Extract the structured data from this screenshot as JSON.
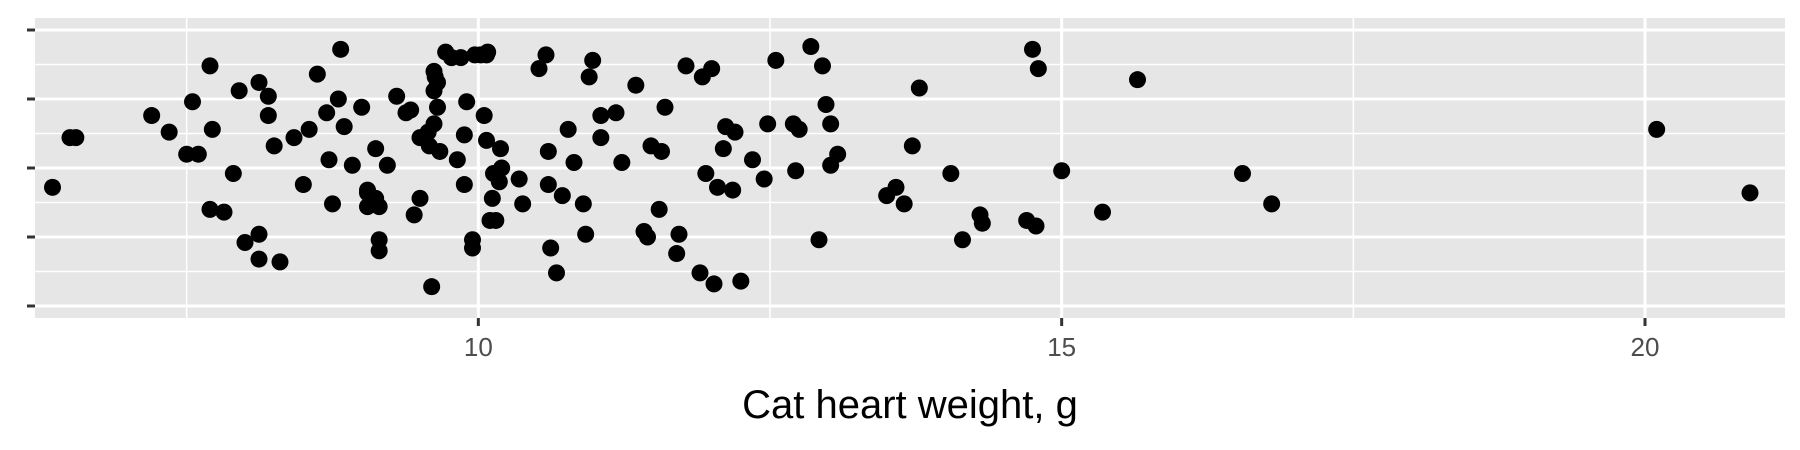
{
  "chart_data": {
    "type": "scatter",
    "title": "",
    "xlabel": "Cat heart weight, g",
    "ylabel": "",
    "xlim": [
      6.2,
      21.2
    ],
    "x_ticks": [
      10,
      15,
      20
    ],
    "x_tick_labels": [
      "10",
      "15",
      "20"
    ],
    "x_minor_ticks": [
      7.5,
      12.5,
      17.5
    ],
    "y_tick_marks": 5,
    "y_tick_labels_shown": false,
    "y_jitter": true,
    "grid": true,
    "legend": "none",
    "colors": {
      "panel_background": "#e6e6e6",
      "grid": "#ffffff",
      "points": "#000000",
      "tick_label": "#4d4d4d",
      "axis_title": "#000000"
    },
    "x": [
      6.35,
      6.5,
      6.55,
      7.2,
      7.35,
      7.5,
      7.55,
      7.6,
      7.7,
      7.7,
      7.72,
      7.82,
      7.9,
      7.95,
      8.0,
      8.12,
      8.12,
      8.12,
      8.2,
      8.2,
      8.25,
      8.3,
      8.42,
      8.5,
      8.55,
      8.62,
      8.7,
      8.72,
      8.75,
      8.8,
      8.82,
      8.85,
      8.92,
      9.0,
      9.05,
      9.05,
      9.05,
      9.12,
      9.12,
      9.15,
      9.15,
      9.15,
      9.22,
      9.3,
      9.38,
      9.42,
      9.45,
      9.5,
      9.5,
      9.57,
      9.58,
      9.6,
      9.62,
      9.62,
      9.62,
      9.63,
      9.65,
      9.65,
      9.67,
      9.72,
      9.77,
      9.82,
      9.85,
      9.88,
      9.88,
      9.9,
      9.95,
      9.95,
      9.97,
      10.02,
      10.05,
      10.07,
      10.07,
      10.08,
      10.1,
      10.12,
      10.13,
      10.15,
      10.18,
      10.19,
      10.2,
      10.35,
      10.38,
      10.52,
      10.58,
      10.6,
      10.6,
      10.62,
      10.67,
      10.72,
      10.77,
      10.82,
      10.9,
      10.92,
      10.95,
      10.98,
      11.05,
      11.05,
      11.18,
      11.23,
      11.35,
      11.42,
      11.45,
      11.48,
      11.55,
      11.57,
      11.6,
      11.7,
      11.72,
      11.78,
      11.9,
      11.92,
      11.95,
      12.0,
      12.02,
      12.05,
      12.1,
      12.12,
      12.18,
      12.2,
      12.25,
      12.35,
      12.45,
      12.48,
      12.55,
      12.7,
      12.72,
      12.75,
      12.85,
      12.92,
      12.95,
      12.98,
      13.02,
      13.02,
      13.08,
      13.5,
      13.58,
      13.65,
      13.72,
      13.78,
      14.05,
      14.15,
      14.3,
      14.32,
      14.7,
      14.75,
      14.78,
      14.8,
      15.0,
      15.35,
      15.65,
      16.55,
      16.8,
      20.1,
      20.9
    ],
    "y": [
      0.43,
      0.61,
      0.61,
      0.69,
      0.63,
      0.55,
      0.74,
      0.55,
      0.87,
      0.35,
      0.64,
      0.34,
      0.48,
      0.78,
      0.23,
      0.26,
      0.81,
      0.17,
      0.76,
      0.69,
      0.58,
      0.16,
      0.61,
      0.44,
      0.64,
      0.84,
      0.7,
      0.53,
      0.37,
      0.75,
      0.93,
      0.65,
      0.51,
      0.72,
      0.42,
      0.41,
      0.36,
      0.57,
      0.39,
      0.24,
      0.2,
      0.36,
      0.51,
      0.76,
      0.7,
      0.71,
      0.33,
      0.61,
      0.39,
      0.63,
      0.58,
      0.07,
      0.78,
      0.66,
      0.85,
      0.83,
      0.72,
      0.81,
      0.56,
      0.92,
      0.9,
      0.53,
      0.9,
      0.62,
      0.44,
      0.74,
      0.24,
      0.21,
      0.91,
      0.91,
      0.69,
      0.91,
      0.6,
      0.92,
      0.31,
      0.39,
      0.48,
      0.31,
      0.45,
      0.57,
      0.5,
      0.46,
      0.37,
      0.86,
      0.91,
      0.44,
      0.56,
      0.21,
      0.12,
      0.4,
      0.64,
      0.52,
      0.37,
      0.26,
      0.83,
      0.89,
      0.69,
      0.61,
      0.7,
      0.52,
      0.8,
      0.27,
      0.25,
      0.58,
      0.35,
      0.56,
      0.72,
      0.19,
      0.26,
      0.87,
      0.12,
      0.83,
      0.48,
      0.86,
      0.08,
      0.43,
      0.57,
      0.65,
      0.42,
      0.63,
      0.09,
      0.53,
      0.46,
      0.66,
      0.89,
      0.66,
      0.49,
      0.64,
      0.94,
      0.24,
      0.87,
      0.73,
      0.51,
      0.66,
      0.55,
      0.4,
      0.43,
      0.37,
      0.58,
      0.79,
      0.48,
      0.24,
      0.33,
      0.3,
      0.31,
      0.93,
      0.29,
      0.86,
      0.49,
      0.34,
      0.82,
      0.48,
      0.37,
      0.64,
      0.41
    ]
  }
}
